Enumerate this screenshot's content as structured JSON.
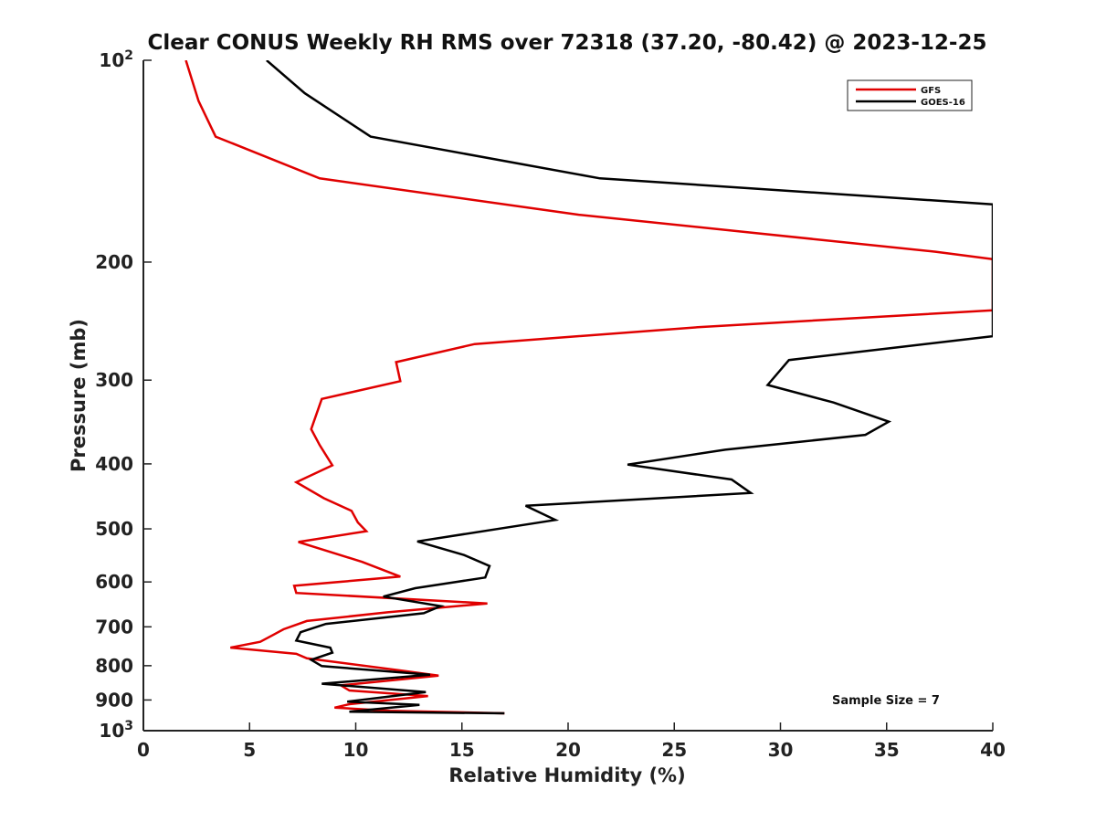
{
  "chart_data": {
    "type": "line",
    "title": "Clear CONUS Weekly RH RMS over 72318 (37.20, -80.42) @ 2023-12-25",
    "xlabel": "Relative Humidity (%)",
    "ylabel": "Pressure (mb)",
    "xlim": [
      0,
      40
    ],
    "ylim": [
      100,
      1000
    ],
    "y_scale": "log",
    "y_reversed": true,
    "grid": false,
    "legend_placement": "top-right",
    "x_ticks": [
      0,
      5,
      10,
      15,
      20,
      25,
      30,
      35,
      40
    ],
    "x_tick_labels": [
      "0",
      "5",
      "10",
      "15",
      "20",
      "25",
      "30",
      "35",
      "40"
    ],
    "y_ticks": [
      100,
      200,
      300,
      400,
      500,
      600,
      700,
      800,
      900,
      1000
    ],
    "y_tick_labels": [
      {
        "base": "10",
        "exp": "2"
      },
      {
        "base": "200",
        "exp": ""
      },
      {
        "base": "300",
        "exp": ""
      },
      {
        "base": "400",
        "exp": ""
      },
      {
        "base": "500",
        "exp": ""
      },
      {
        "base": "600",
        "exp": ""
      },
      {
        "base": "700",
        "exp": ""
      },
      {
        "base": "800",
        "exp": ""
      },
      {
        "base": "900",
        "exp": ""
      },
      {
        "base": "10",
        "exp": "3"
      }
    ],
    "annotation": "Sample Size = 7",
    "series": [
      {
        "name": "GFS",
        "color": "#e00000",
        "points": [
          [
            2.0,
            100
          ],
          [
            2.6,
            115
          ],
          [
            3.4,
            130
          ],
          [
            8.3,
            150
          ],
          [
            20.5,
            170
          ],
          [
            37.3,
            193
          ],
          [
            40.0,
            198
          ],
          [
            40.0,
            236
          ],
          [
            26.2,
            250
          ],
          [
            15.6,
            265
          ],
          [
            11.9,
            282
          ],
          [
            12.1,
            301
          ],
          [
            8.4,
            320
          ],
          [
            7.9,
            355
          ],
          [
            8.3,
            375
          ],
          [
            8.9,
            402
          ],
          [
            7.2,
            426
          ],
          [
            8.5,
            450
          ],
          [
            9.8,
            470
          ],
          [
            10.1,
            489
          ],
          [
            10.5,
            504
          ],
          [
            7.3,
            523
          ],
          [
            10.3,
            560
          ],
          [
            12.1,
            589
          ],
          [
            7.1,
            608
          ],
          [
            7.2,
            623
          ],
          [
            16.2,
            646
          ],
          [
            11.5,
            666
          ],
          [
            7.7,
            686
          ],
          [
            6.6,
            706
          ],
          [
            6.1,
            720
          ],
          [
            5.5,
            737
          ],
          [
            4.1,
            752
          ],
          [
            7.2,
            768
          ],
          [
            7.7,
            780
          ],
          [
            12.2,
            814
          ],
          [
            13.9,
            828
          ],
          [
            9.3,
            856
          ],
          [
            9.7,
            871
          ],
          [
            13.4,
            888
          ],
          [
            9.7,
            913
          ],
          [
            9.0,
            924
          ],
          [
            11.6,
            934
          ],
          [
            17.0,
            942
          ]
        ]
      },
      {
        "name": "GOES-16",
        "color": "#000000",
        "points": [
          [
            5.8,
            100
          ],
          [
            7.6,
            112
          ],
          [
            10.7,
            130
          ],
          [
            21.5,
            150
          ],
          [
            40.0,
            164
          ],
          [
            40.0,
            258
          ],
          [
            30.4,
            280
          ],
          [
            29.4,
            305
          ],
          [
            32.5,
            324
          ],
          [
            35.1,
            346
          ],
          [
            34.0,
            362
          ],
          [
            27.4,
            381
          ],
          [
            22.8,
            401
          ],
          [
            27.7,
            422
          ],
          [
            28.6,
            442
          ],
          [
            18.0,
            462
          ],
          [
            19.4,
            485
          ],
          [
            12.9,
            522
          ],
          [
            15.1,
            547
          ],
          [
            16.3,
            568
          ],
          [
            16.1,
            591
          ],
          [
            12.8,
            613
          ],
          [
            11.3,
            631
          ],
          [
            14.0,
            652
          ],
          [
            13.2,
            668
          ],
          [
            8.6,
            693
          ],
          [
            7.4,
            713
          ],
          [
            7.2,
            734
          ],
          [
            8.8,
            752
          ],
          [
            8.9,
            765
          ],
          [
            7.9,
            784
          ],
          [
            8.4,
            801
          ],
          [
            13.5,
            825
          ],
          [
            8.4,
            851
          ],
          [
            13.3,
            876
          ],
          [
            9.6,
            905
          ],
          [
            13.0,
            915
          ],
          [
            9.7,
            937
          ],
          [
            17.0,
            942
          ]
        ]
      }
    ]
  }
}
